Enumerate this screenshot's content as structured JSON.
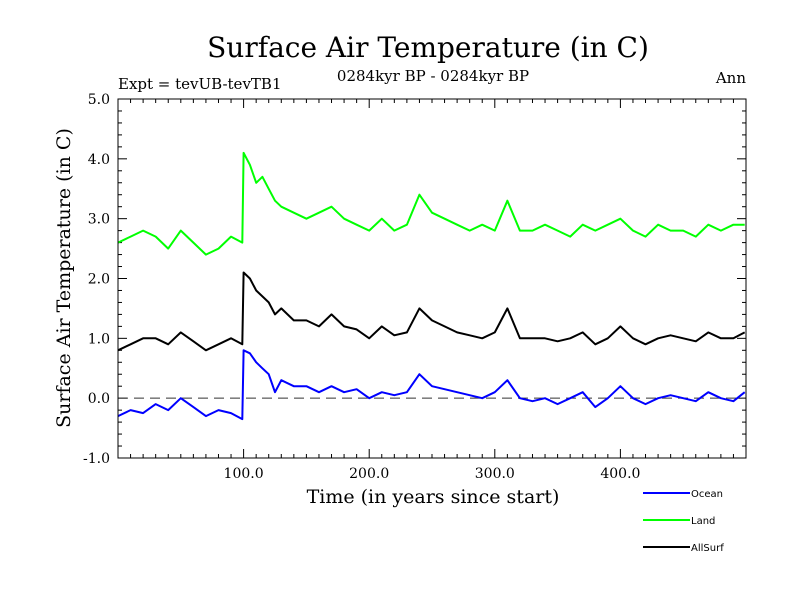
{
  "chart_data": {
    "type": "line",
    "title": "Surface Air Temperature (in C)",
    "subtitle": "0284kyr BP - 0284kyr BP",
    "left_note": "Expt = tevUB-tevTB1",
    "right_note": "Ann",
    "xlabel": "Time (in years since start)",
    "ylabel": "Surface Air Temperature (in C)",
    "xlim": [
      0,
      500
    ],
    "ylim": [
      -1.0,
      5.0
    ],
    "xticks": [
      100,
      200,
      300,
      400
    ],
    "xtick_labels": [
      "100.0",
      "200.0",
      "300.0",
      "400.0"
    ],
    "yticks": [
      -1,
      0,
      1,
      2,
      3,
      4,
      5
    ],
    "ytick_labels": [
      "-1.0",
      "0.0",
      "1.0",
      "2.0",
      "3.0",
      "4.0",
      "5.0"
    ],
    "reference_line": 0.0,
    "grid": false,
    "legend_position": "bottom-right",
    "series": [
      {
        "name": "Ocean",
        "color": "#0000ff",
        "x": [
          0,
          10,
          20,
          30,
          40,
          50,
          60,
          70,
          80,
          90,
          99,
          100,
          105,
          110,
          115,
          120,
          125,
          130,
          140,
          150,
          160,
          170,
          180,
          190,
          200,
          210,
          220,
          230,
          240,
          250,
          260,
          270,
          280,
          290,
          300,
          310,
          320,
          330,
          340,
          350,
          360,
          370,
          380,
          390,
          400,
          410,
          420,
          430,
          440,
          450,
          460,
          470,
          480,
          490,
          499
        ],
        "values": [
          -0.3,
          -0.2,
          -0.25,
          -0.1,
          -0.2,
          0.0,
          -0.15,
          -0.3,
          -0.2,
          -0.25,
          -0.35,
          0.8,
          0.75,
          0.6,
          0.5,
          0.4,
          0.1,
          0.3,
          0.2,
          0.2,
          0.1,
          0.2,
          0.1,
          0.15,
          0.0,
          0.1,
          0.05,
          0.1,
          0.4,
          0.2,
          0.15,
          0.1,
          0.05,
          0.0,
          0.1,
          0.3,
          0.0,
          -0.05,
          0.0,
          -0.1,
          0.0,
          0.1,
          -0.15,
          0.0,
          0.2,
          0.0,
          -0.1,
          0.0,
          0.05,
          0.0,
          -0.05,
          0.1,
          0.0,
          -0.05,
          0.1
        ]
      },
      {
        "name": "Land",
        "color": "#00ff00",
        "x": [
          0,
          10,
          20,
          30,
          40,
          50,
          60,
          70,
          80,
          90,
          99,
          100,
          105,
          110,
          115,
          120,
          125,
          130,
          140,
          150,
          160,
          170,
          180,
          190,
          200,
          210,
          220,
          230,
          240,
          250,
          260,
          270,
          280,
          290,
          300,
          310,
          320,
          330,
          340,
          350,
          360,
          370,
          380,
          390,
          400,
          410,
          420,
          430,
          440,
          450,
          460,
          470,
          480,
          490,
          499
        ],
        "values": [
          2.6,
          2.7,
          2.8,
          2.7,
          2.5,
          2.8,
          2.6,
          2.4,
          2.5,
          2.7,
          2.6,
          4.1,
          3.9,
          3.6,
          3.7,
          3.5,
          3.3,
          3.2,
          3.1,
          3.0,
          3.1,
          3.2,
          3.0,
          2.9,
          2.8,
          3.0,
          2.8,
          2.9,
          3.4,
          3.1,
          3.0,
          2.9,
          2.8,
          2.9,
          2.8,
          3.3,
          2.8,
          2.8,
          2.9,
          2.8,
          2.7,
          2.9,
          2.8,
          2.9,
          3.0,
          2.8,
          2.7,
          2.9,
          2.8,
          2.8,
          2.7,
          2.9,
          2.8,
          2.9,
          2.9
        ]
      },
      {
        "name": "AllSurf",
        "color": "#000000",
        "x": [
          0,
          10,
          20,
          30,
          40,
          50,
          60,
          70,
          80,
          90,
          99,
          100,
          105,
          110,
          115,
          120,
          125,
          130,
          140,
          150,
          160,
          170,
          180,
          190,
          200,
          210,
          220,
          230,
          240,
          250,
          260,
          270,
          280,
          290,
          300,
          310,
          320,
          330,
          340,
          350,
          360,
          370,
          380,
          390,
          400,
          410,
          420,
          430,
          440,
          450,
          460,
          470,
          480,
          490,
          499
        ],
        "values": [
          0.8,
          0.9,
          1.0,
          1.0,
          0.9,
          1.1,
          0.95,
          0.8,
          0.9,
          1.0,
          0.9,
          2.1,
          2.0,
          1.8,
          1.7,
          1.6,
          1.4,
          1.5,
          1.3,
          1.3,
          1.2,
          1.4,
          1.2,
          1.15,
          1.0,
          1.2,
          1.05,
          1.1,
          1.5,
          1.3,
          1.2,
          1.1,
          1.05,
          1.0,
          1.1,
          1.5,
          1.0,
          1.0,
          1.0,
          0.95,
          1.0,
          1.1,
          0.9,
          1.0,
          1.2,
          1.0,
          0.9,
          1.0,
          1.05,
          1.0,
          0.95,
          1.1,
          1.0,
          1.0,
          1.1
        ]
      }
    ]
  }
}
